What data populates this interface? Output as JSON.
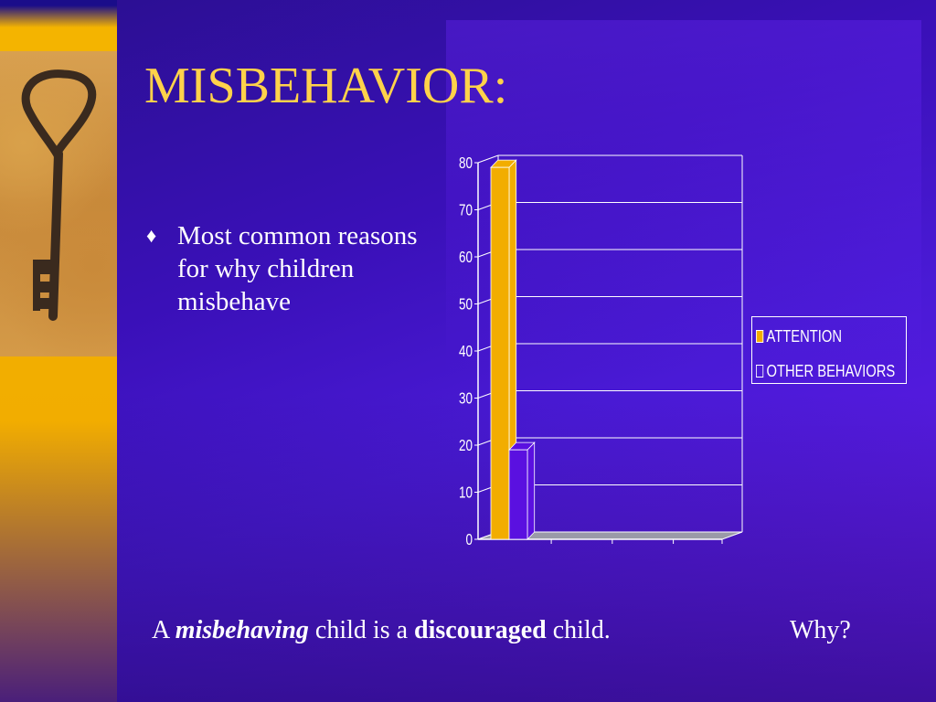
{
  "slide": {
    "title": "MISBEHAVIOR:",
    "bullet": {
      "marker": "♦",
      "text": "Most common reasons for why children misbehave"
    },
    "footer": {
      "part1": "A ",
      "part2": "misbehaving",
      "part3": " child  is a ",
      "part4": "discouraged",
      "part5": " child.",
      "why": "Why?"
    }
  },
  "colors": {
    "title": "#ffd24a",
    "attention": "#f2ad00",
    "other_behaviors": "#5a10e0",
    "axis": "#ffffff"
  },
  "chart_data": {
    "type": "bar",
    "categories": [
      ""
    ],
    "series": [
      {
        "name": "ATTENTION",
        "values": [
          79
        ]
      },
      {
        "name": "OTHER BEHAVIORS",
        "values": [
          19
        ]
      }
    ],
    "ylim": [
      0,
      80
    ],
    "yticks": [
      0,
      10,
      20,
      30,
      40,
      50,
      60,
      70,
      80
    ],
    "grid": true,
    "legend": "right",
    "three_d": true
  }
}
